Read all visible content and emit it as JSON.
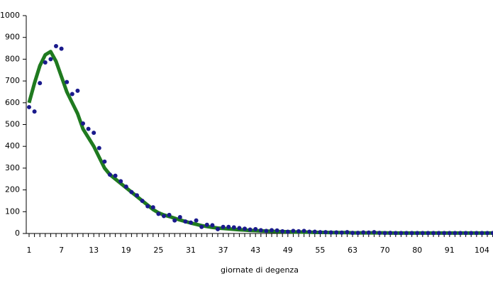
{
  "chart_data": {
    "type": "line",
    "x_label": "giornate di degenza",
    "categories": [
      1,
      null,
      null,
      null,
      null,
      null,
      7,
      null,
      null,
      null,
      null,
      null,
      13,
      null,
      null,
      null,
      null,
      null,
      19,
      null,
      null,
      null,
      null,
      null,
      25,
      null,
      null,
      null,
      null,
      null,
      31,
      null,
      null,
      null,
      null,
      null,
      37,
      null,
      null,
      null,
      null,
      null,
      43,
      null,
      null,
      null,
      null,
      null,
      49,
      null,
      null,
      null,
      null,
      null,
      55,
      null,
      null,
      null,
      null,
      null,
      63,
      null,
      null,
      null,
      null,
      null,
      70,
      null,
      null,
      null,
      null,
      null,
      80,
      null,
      null,
      null,
      null,
      null,
      91,
      null,
      null,
      null,
      null,
      null,
      104,
      null,
      null,
      null
    ],
    "ylim": [
      0,
      1000
    ],
    "yticks": [
      0,
      100,
      200,
      300,
      400,
      500,
      600,
      700,
      800,
      900,
      1000
    ],
    "grid": false,
    "series": [
      {
        "type": "line",
        "color": "#1f7a1f",
        "values": [
          600,
          690,
          770,
          820,
          835,
          790,
          720,
          650,
          600,
          550,
          480,
          440,
          400,
          350,
          300,
          270,
          250,
          230,
          210,
          190,
          170,
          150,
          130,
          110,
          95,
          85,
          78,
          70,
          62,
          55,
          48,
          42,
          36,
          32,
          28,
          25,
          23,
          21,
          19,
          17,
          16,
          14,
          13,
          12,
          11,
          10,
          9,
          8,
          8,
          7,
          7,
          6,
          6,
          5,
          5,
          5,
          4,
          4,
          4,
          4,
          3,
          3,
          3,
          3,
          3,
          3,
          3,
          2,
          2,
          2,
          2,
          2,
          2,
          2,
          2,
          2,
          2,
          2,
          2,
          2,
          2,
          2,
          2,
          2,
          2,
          2,
          2,
          2
        ]
      },
      {
        "type": "scatter",
        "color": "#1a1a8c",
        "values": [
          580,
          560,
          690,
          785,
          800,
          860,
          848,
          695,
          640,
          655,
          505,
          480,
          462,
          392,
          330,
          270,
          265,
          240,
          215,
          190,
          175,
          150,
          125,
          120,
          90,
          80,
          85,
          60,
          75,
          55,
          50,
          60,
          30,
          40,
          38,
          20,
          30,
          30,
          28,
          25,
          22,
          18,
          20,
          15,
          12,
          15,
          14,
          10,
          8,
          12,
          10,
          12,
          8,
          8,
          6,
          6,
          5,
          5,
          4,
          6,
          3,
          3,
          5,
          4,
          6,
          3,
          2,
          3,
          2,
          2,
          2,
          2,
          2,
          2,
          2,
          2,
          2,
          2,
          2,
          2,
          2,
          2,
          2,
          2,
          2,
          2,
          2,
          2
        ]
      }
    ]
  }
}
